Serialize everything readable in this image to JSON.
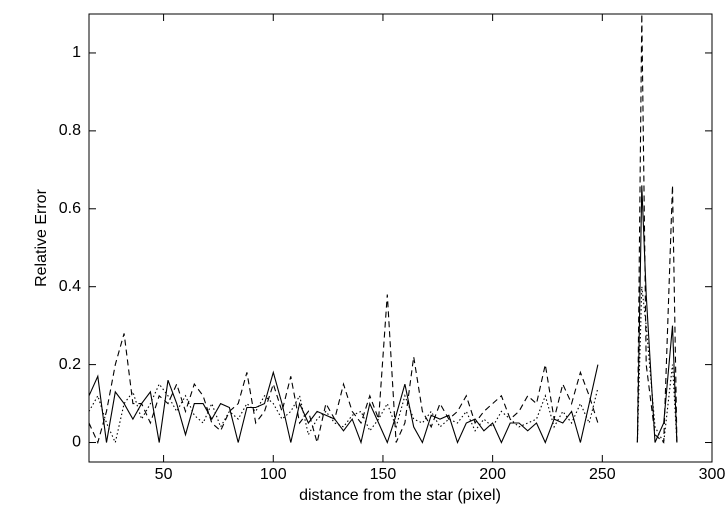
{
  "chart_data": {
    "type": "line",
    "xlabel": "distance from the star (pixel)",
    "ylabel": "Relative Error",
    "xlim": [
      16,
      300
    ],
    "ylim": [
      -0.05,
      1.1
    ],
    "xticks": [
      50,
      100,
      150,
      200,
      250,
      300
    ],
    "yticks": [
      0,
      0.2,
      0.4,
      0.6,
      0.8,
      1
    ],
    "x": [
      16,
      20,
      24,
      28,
      32,
      36,
      40,
      44,
      48,
      52,
      56,
      60,
      64,
      68,
      72,
      76,
      80,
      84,
      88,
      92,
      96,
      100,
      104,
      108,
      112,
      116,
      120,
      124,
      128,
      132,
      136,
      140,
      144,
      148,
      152,
      156,
      160,
      164,
      168,
      172,
      176,
      180,
      184,
      188,
      192,
      196,
      200,
      204,
      208,
      212,
      216,
      220,
      224,
      228,
      232,
      236,
      240,
      244,
      248,
      258,
      266,
      268,
      270,
      274,
      278,
      282,
      284
    ],
    "series": [
      {
        "color": "#000000",
        "linestyle": "solid",
        "values": [
          0.12,
          0.17,
          0,
          0.13,
          0.1,
          0.06,
          0.1,
          0.13,
          0,
          0.16,
          0.1,
          0.02,
          0.1,
          0.1,
          0.06,
          0.1,
          0.09,
          0,
          0.09,
          0.09,
          0.1,
          0.18,
          0.1,
          0,
          0.1,
          0.05,
          0.08,
          0.07,
          0.06,
          0.03,
          0.06,
          0,
          0.1,
          0.05,
          0,
          0.07,
          0.15,
          0.04,
          0,
          0.07,
          0.06,
          0.07,
          0,
          0.05,
          0.06,
          0.03,
          0.05,
          0,
          0.05,
          0.05,
          0.03,
          0.05,
          0,
          0.06,
          0.05,
          0.08,
          0,
          0.1,
          0.2,
          null,
          0,
          0.66,
          0.38,
          0,
          0.05,
          0.3,
          0
        ]
      },
      {
        "color": "#000000",
        "linestyle": "dashed",
        "values": [
          0.05,
          0,
          0.08,
          0.2,
          0.28,
          0.1,
          0.1,
          0.05,
          0.12,
          0.1,
          0.15,
          0.08,
          0.15,
          0.12,
          0.05,
          0.03,
          0.08,
          0.1,
          0.18,
          0.05,
          0.08,
          0.15,
          0.08,
          0.17,
          0.05,
          0.08,
          0,
          0.1,
          0.06,
          0.15,
          0.08,
          0.05,
          0.12,
          0.06,
          0.38,
          0,
          0.05,
          0.22,
          0.08,
          0.04,
          0.1,
          0.06,
          0.08,
          0.12,
          0.05,
          0.08,
          0.1,
          0.12,
          0.06,
          0.08,
          0.12,
          0.1,
          0.2,
          0.06,
          0.15,
          0.1,
          0.18,
          0.12,
          0.05,
          null,
          0,
          1.1,
          0.2,
          0.02,
          0,
          0.66,
          0
        ]
      },
      {
        "color": "#000000",
        "linestyle": "dotted",
        "values": [
          0.08,
          0.12,
          0.05,
          0,
          0.1,
          0.13,
          0.06,
          0.1,
          0.15,
          0.12,
          0.08,
          0.12,
          0.07,
          0.05,
          0.1,
          0.04,
          0.08,
          0.06,
          0.1,
          0.08,
          0.12,
          0.1,
          0.06,
          0.08,
          0.12,
          0.02,
          0.06,
          0.08,
          0.05,
          0.04,
          0.07,
          0.08,
          0.03,
          0.06,
          0.1,
          0.04,
          0.12,
          0.06,
          0.05,
          0.08,
          0.04,
          0.06,
          0.05,
          0.08,
          0.03,
          0.06,
          0.04,
          0.08,
          0.06,
          0.04,
          0.05,
          0.06,
          0.12,
          0.04,
          0.08,
          0.05,
          0.1,
          0.05,
          0.14,
          null,
          0,
          0.4,
          0.3,
          0.04,
          0,
          0.2,
          0
        ]
      }
    ]
  }
}
